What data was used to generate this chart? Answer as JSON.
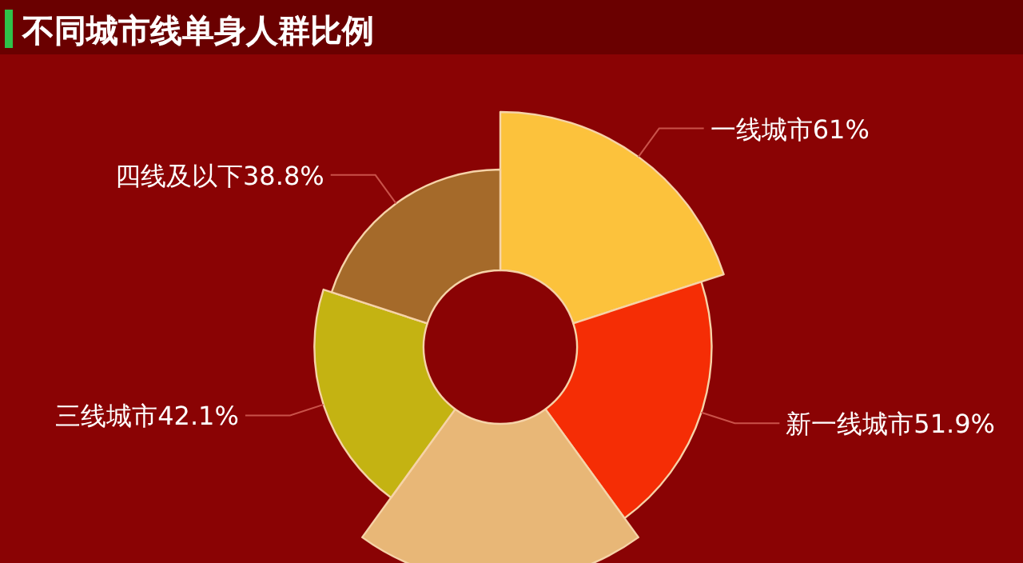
{
  "chart_data": {
    "type": "other",
    "title": "不同城市线单身人群比例",
    "categories": [
      "一线城市",
      "新一线城市",
      null,
      "三线城市",
      "四线及以下"
    ],
    "value_labels": [
      "61%",
      "51.9%",
      null,
      "42.1%",
      "38.8%"
    ],
    "values": [
      61,
      51.9,
      null,
      42.1,
      38.8
    ],
    "colors": [
      "#fcc23c",
      "#f52d05",
      "#e8b777",
      "#c4b312",
      "#a56a2a"
    ],
    "legend": false
  }
}
